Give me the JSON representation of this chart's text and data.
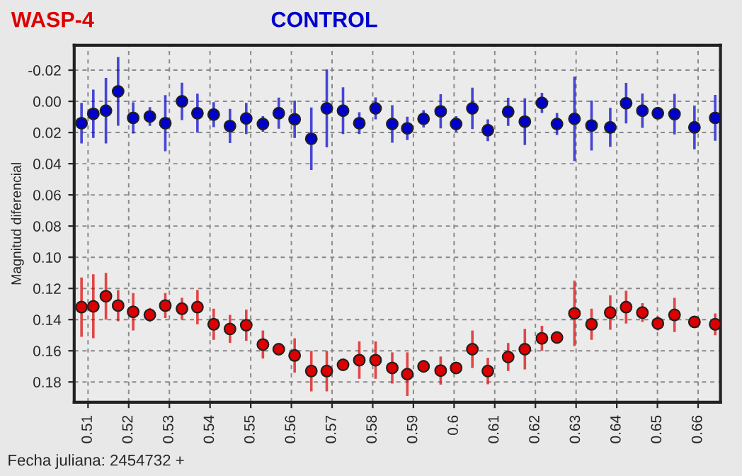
{
  "chart_data": {
    "type": "scatter",
    "xlabel": "Fecha juliana: 2454732 +",
    "ylabel": "Magnitud diferencial",
    "marker": "circle",
    "grid": true,
    "legend": "top left",
    "x": [
      0.5084,
      0.5113,
      0.5144,
      0.5174,
      0.5211,
      0.5252,
      0.529,
      0.5331,
      0.5369,
      0.5409,
      0.5449,
      0.5489,
      0.553,
      0.5569,
      0.5608,
      0.5649,
      0.5687,
      0.5727,
      0.5767,
      0.5807,
      0.5848,
      0.5885,
      0.5925,
      0.5967,
      0.6005,
      0.6045,
      0.6083,
      0.6133,
      0.6174,
      0.6216,
      0.6253,
      0.6296,
      0.6338,
      0.6384,
      0.6423,
      0.6463,
      0.6501,
      0.6542,
      0.6591,
      0.6642
    ],
    "series": [
      {
        "name": "WASP-4",
        "color": "#dd0000",
        "values": [
          0.132,
          0.1315,
          0.125,
          0.131,
          0.135,
          0.137,
          0.131,
          0.133,
          0.132,
          0.143,
          0.146,
          0.1436,
          0.156,
          0.159,
          0.163,
          0.173,
          0.173,
          0.169,
          0.166,
          0.166,
          0.171,
          0.175,
          0.17,
          0.1727,
          0.171,
          0.159,
          0.173,
          0.164,
          0.159,
          0.152,
          0.1515,
          0.136,
          0.143,
          0.1355,
          0.132,
          0.1355,
          0.1425,
          0.137,
          0.1415,
          0.143
        ],
        "errors": [
          0.019,
          0.0205,
          0.015,
          0.01,
          0.012,
          0.0045,
          0.008,
          0.007,
          0.011,
          0.01,
          0.009,
          0.01,
          0.009,
          0.002,
          0.011,
          0.013,
          0.013,
          0.0025,
          0.012,
          0.012,
          0.01,
          0.014,
          0.004,
          0.009,
          0.003,
          0.012,
          0.0085,
          0.009,
          0.013,
          0.008,
          0.002,
          0.021,
          0.01,
          0.011,
          0.0105,
          0.006,
          0.0045,
          0.011,
          0.0035,
          0.007
        ]
      },
      {
        "name": "CONTROL",
        "color": "#0000cc",
        "values": [
          0.014,
          0.008,
          0.006,
          -0.0064,
          0.0106,
          0.0097,
          0.014,
          0.0,
          0.0076,
          0.0085,
          0.0158,
          0.011,
          0.0145,
          0.0076,
          0.0115,
          0.024,
          0.0045,
          0.006,
          0.014,
          0.0045,
          0.0145,
          0.0173,
          0.0112,
          0.0064,
          0.0145,
          0.0045,
          0.0185,
          0.0067,
          0.013,
          0.001,
          0.0145,
          0.0112,
          0.0155,
          0.0167,
          0.0012,
          0.006,
          0.0076,
          0.0082,
          0.0167,
          0.0106
        ],
        "errors": [
          0.013,
          0.0155,
          0.021,
          0.022,
          0.01,
          0.006,
          0.018,
          0.012,
          0.0125,
          0.008,
          0.011,
          0.01,
          0.005,
          0.01,
          0.012,
          0.02,
          0.025,
          0.015,
          0.007,
          0.007,
          0.012,
          0.0075,
          0.0056,
          0.011,
          0.005,
          0.0133,
          0.007,
          0.009,
          0.015,
          0.0065,
          0.007,
          0.027,
          0.016,
          0.0125,
          0.013,
          0.011,
          0.004,
          0.013,
          0.014,
          0.0147
        ]
      }
    ],
    "xlim": [
      0.5066,
      0.6655
    ],
    "ylim": [
      0.193,
      -0.036
    ],
    "xticks": [
      0.51,
      0.52,
      0.53,
      0.54,
      0.55,
      0.56,
      0.57,
      0.58,
      0.59,
      0.6,
      0.61,
      0.62,
      0.63,
      0.64,
      0.65,
      0.66
    ],
    "yticks": [
      {
        "value": -0.02,
        "label": "-0.02"
      },
      {
        "value": 0,
        "label": "0.00"
      },
      {
        "value": 0.02,
        "label": "0.02"
      },
      {
        "value": 0.04,
        "label": "0.04"
      },
      {
        "value": 0.06,
        "label": "0.06"
      },
      {
        "value": 0.08,
        "label": "0.08"
      },
      {
        "value": 0.1,
        "label": "0.10"
      },
      {
        "value": 0.12,
        "label": "0.12"
      },
      {
        "value": 0.14,
        "label": "0.14"
      },
      {
        "value": 0.16,
        "label": "0.16"
      },
      {
        "value": 0.18,
        "label": "0.18"
      }
    ]
  }
}
